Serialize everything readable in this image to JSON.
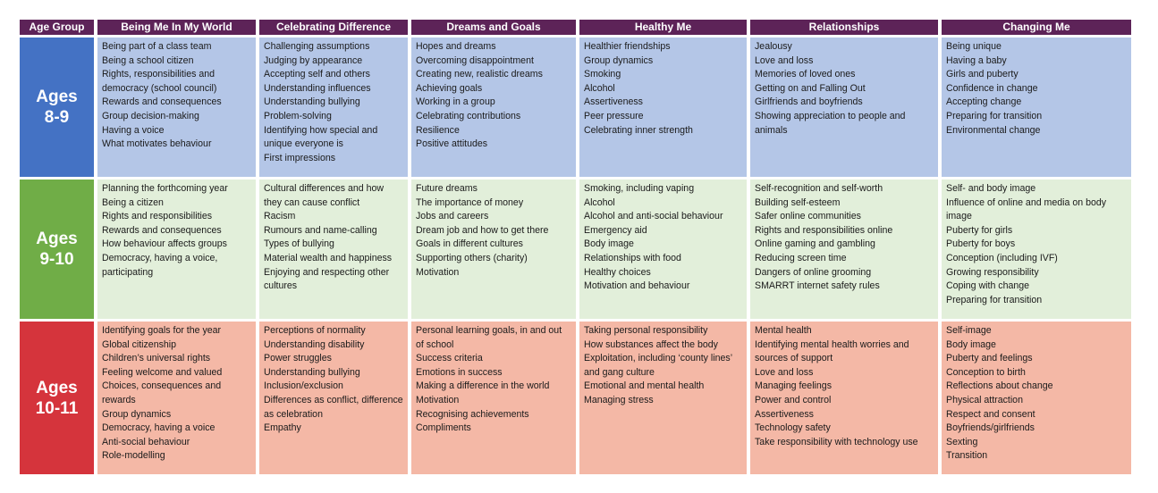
{
  "header": {
    "age_group": "Age Group",
    "columns": [
      "Being Me In My World",
      "Celebrating Difference",
      "Dreams and Goals",
      "Healthy Me",
      "Relationships",
      "Changing Me"
    ]
  },
  "colors": {
    "header": "#5d2358",
    "age_8_9": "#4472c4",
    "age_9_10": "#70ad47",
    "age_10_11": "#d5343c",
    "row_8_9": "#b4c6e7",
    "row_9_10": "#e2efda",
    "row_10_11": "#f4b8a6"
  },
  "rows": [
    {
      "age_line1": "Ages",
      "age_line2": "8-9",
      "cells": [
        [
          "Being part of a class team",
          "Being a school citizen",
          "Rights, responsibilities and democracy (school council)",
          "Rewards and consequences",
          "Group decision-making",
          "Having a voice",
          "What motivates behaviour"
        ],
        [
          "Challenging assumptions",
          "Judging by appearance",
          "Accepting self and others",
          "Understanding influences",
          "Understanding bullying",
          "Problem-solving",
          "Identifying how special and unique everyone is",
          "First impressions"
        ],
        [
          "Hopes and dreams",
          "Overcoming disappointment",
          "Creating new, realistic dreams",
          "Achieving goals",
          "Working in a group",
          "Celebrating contributions",
          "Resilience",
          "Positive attitudes"
        ],
        [
          "Healthier friendships",
          "Group dynamics",
          "Smoking",
          "Alcohol",
          "Assertiveness",
          "Peer pressure",
          "Celebrating inner strength"
        ],
        [
          "Jealousy",
          "Love and loss",
          "Memories of loved ones",
          "Getting on and Falling Out",
          "Girlfriends and boyfriends",
          "Showing appreciation to people and animals"
        ],
        [
          "Being unique",
          "Having a baby",
          "Girls and puberty",
          "Confidence in change",
          "Accepting change",
          "Preparing for transition",
          "Environmental change"
        ]
      ]
    },
    {
      "age_line1": "Ages",
      "age_line2": "9-10",
      "cells": [
        [
          "Planning the forthcoming year",
          "Being a citizen",
          "Rights and responsibilities",
          "Rewards and consequences",
          "How behaviour affects groups",
          "Democracy, having a voice, participating"
        ],
        [
          "Cultural differences and how they can cause conflict",
          "Racism",
          "Rumours and name-calling",
          "Types of bullying",
          "Material wealth and happiness",
          "Enjoying and respecting other cultures"
        ],
        [
          "Future dreams",
          "The importance of money",
          "Jobs and careers",
          "Dream job and how to get there",
          "Goals in different cultures",
          "Supporting others (charity)",
          "Motivation"
        ],
        [
          "Smoking, including vaping",
          "Alcohol",
          "Alcohol and anti-social behaviour",
          "Emergency aid",
          "Body image",
          "Relationships with food",
          "Healthy choices",
          "Motivation and behaviour"
        ],
        [
          "Self-recognition and self-worth",
          "Building self-esteem",
          "Safer online communities",
          "Rights and responsibilities online",
          "Online gaming and gambling",
          "Reducing screen time",
          "Dangers of online grooming",
          "SMARRT internet safety rules"
        ],
        [
          "Self- and body image",
          "Influence of online and media on body image",
          "Puberty for girls",
          "Puberty for boys",
          "Conception (including IVF)",
          "Growing responsibility",
          "Coping with change",
          "Preparing for transition"
        ]
      ]
    },
    {
      "age_line1": "Ages",
      "age_line2": "10-11",
      "cells": [
        [
          "Identifying goals for the year",
          "Global citizenship",
          "Children’s universal rights",
          "Feeling welcome and valued",
          "Choices, consequences and rewards",
          "Group dynamics",
          "Democracy, having a voice",
          "Anti-social behaviour",
          "Role-modelling"
        ],
        [
          "Perceptions of normality",
          "Understanding disability",
          "Power struggles",
          "Understanding bullying",
          "Inclusion/exclusion",
          "Differences as conflict, difference as celebration",
          "Empathy"
        ],
        [
          "Personal learning goals, in and out of school",
          "Success criteria",
          "Emotions in success",
          "Making a difference in the world",
          "Motivation",
          "Recognising achievements",
          "Compliments"
        ],
        [
          "Taking personal responsibility",
          "How substances affect the body",
          "Exploitation, including ‘county lines’ and gang culture",
          "Emotional and mental health",
          "Managing stress"
        ],
        [
          "Mental health",
          "Identifying mental health worries and sources of support",
          "Love and loss",
          "Managing feelings",
          "Power and control",
          "Assertiveness",
          "Technology safety",
          "Take responsibility with technology use"
        ],
        [
          "Self-image",
          "Body image",
          "Puberty and feelings",
          "Conception to birth",
          "Reflections about change",
          "Physical attraction",
          "Respect and consent",
          "Boyfriends/girlfriends",
          "Sexting",
          "Transition"
        ]
      ]
    }
  ]
}
